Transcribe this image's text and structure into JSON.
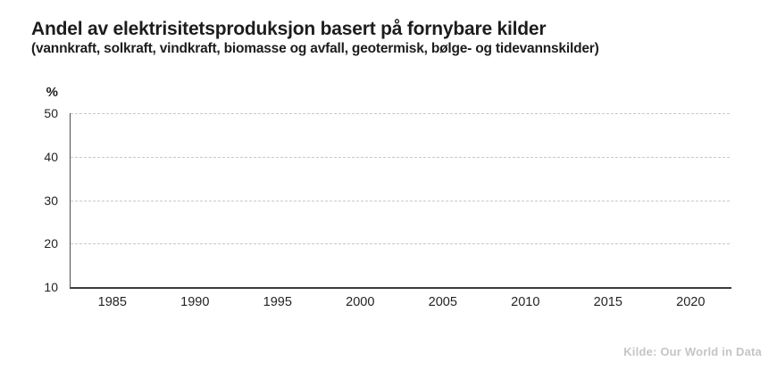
{
  "header": {
    "title": "Andel av elektrisitetsproduksjon basert på fornybare kilder",
    "subtitle": "(vannkraft, solkraft, vindkraft, biomasse og avfall, geotermisk, bølge- og tidevannskilder)"
  },
  "chart_data": {
    "type": "line",
    "title": "Andel av elektrisitetsproduksjon basert på fornybare kilder",
    "subtitle": "(vannkraft, solkraft, vindkraft, biomasse og avfall, geotermisk, bølge- og tidevannskilder)",
    "ylabel": "%",
    "xlabel": "",
    "ylim": [
      10,
      50
    ],
    "xlim": [
      1982.5,
      2022.5
    ],
    "y_ticks": [
      50,
      40,
      30,
      20,
      10
    ],
    "x_ticks": [
      1985,
      1990,
      1995,
      2000,
      2005,
      2010,
      2015,
      2020
    ],
    "grid": "horizontal dashed gridlines at each y tick, no vertical gridlines",
    "legend": "none",
    "series": [],
    "note": "empty chart frame — no data series is drawn in the plot area"
  },
  "footer": {
    "source": "Kilde: Our World in Data"
  },
  "colors": {
    "background": "#ffffff",
    "title_text": "#1d1d1d",
    "tick_text": "#232323",
    "axis": "#3c3c3c",
    "gridline": "#c9c9c9",
    "source_text": "#c5c5c5"
  }
}
